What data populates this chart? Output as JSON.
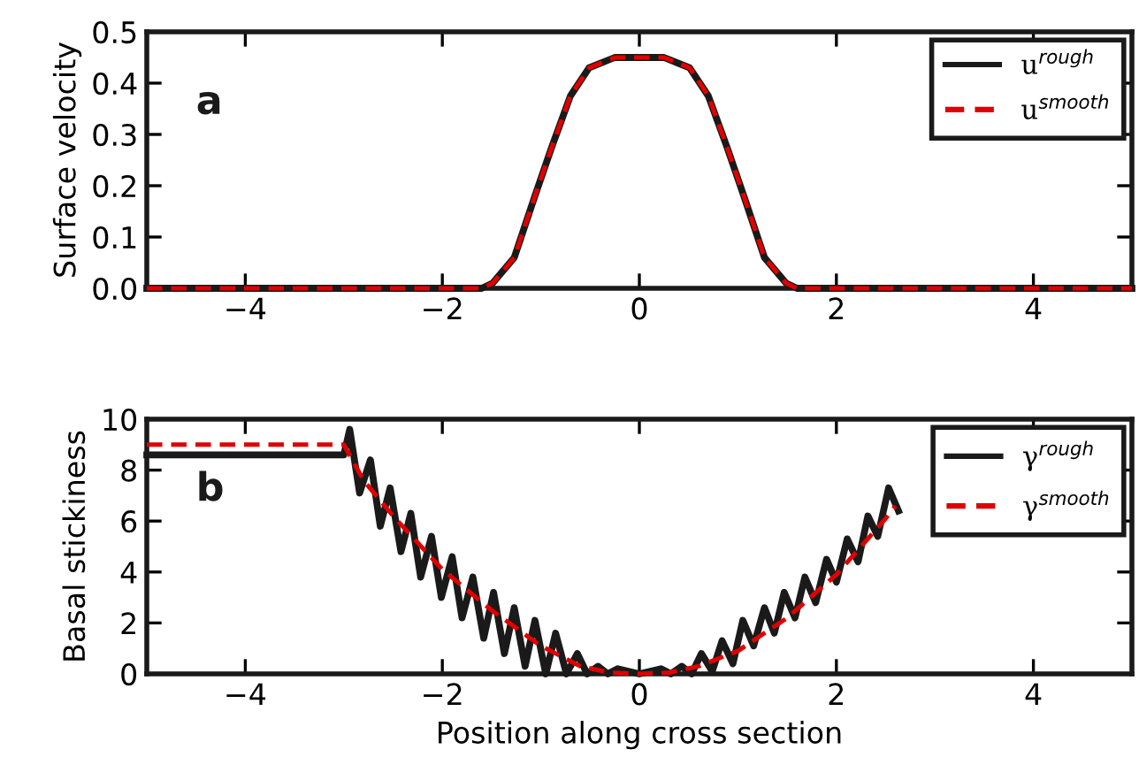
{
  "chart_data": [
    {
      "type": "line",
      "ylabel": "Surface velocity",
      "annotations": [
        "a"
      ],
      "xlim": [
        -5,
        5
      ],
      "xticks": [
        -4,
        -2,
        0,
        2,
        4
      ],
      "ylim": [
        0,
        0.5
      ],
      "yticks": [
        {
          "value": 0,
          "label": "0.0"
        },
        0.1,
        0.2,
        0.3,
        0.4,
        0.5
      ],
      "grid": false,
      "legend": "top right",
      "marker": "none",
      "series": [
        {
          "name": "u$^{rough}$",
          "color": "#1a1a1a",
          "line_style": "solid",
          "x": [
            -5,
            -1.6,
            -1.49,
            -1.27,
            -1.06,
            -0.89,
            -0.7,
            -0.51,
            -0.25,
            0,
            0.25,
            0.51,
            0.7,
            0.89,
            1.06,
            1.27,
            1.49,
            1.6,
            5
          ],
          "values": [
            0,
            0,
            0.01,
            0.06,
            0.18,
            0.275,
            0.375,
            0.43,
            0.45,
            0.45,
            0.45,
            0.43,
            0.375,
            0.275,
            0.18,
            0.06,
            0.01,
            0,
            0
          ]
        },
        {
          "name": "u$^{smooth}$",
          "color": "#e00000",
          "line_style": "dashed",
          "x": [
            -5,
            -1.6,
            -1.49,
            -1.27,
            -1.06,
            -0.89,
            -0.7,
            -0.51,
            -0.25,
            0,
            0.25,
            0.51,
            0.7,
            0.89,
            1.06,
            1.27,
            1.49,
            1.6,
            5
          ],
          "values": [
            0,
            0,
            0.01,
            0.06,
            0.18,
            0.275,
            0.375,
            0.43,
            0.45,
            0.45,
            0.45,
            0.43,
            0.375,
            0.275,
            0.18,
            0.06,
            0.01,
            0,
            0
          ]
        }
      ]
    },
    {
      "type": "line",
      "xlabel": "Position along cross section",
      "ylabel": "Basal stickiness",
      "annotations": [
        "b"
      ],
      "xlim": [
        -5,
        5
      ],
      "xticks": [
        -4,
        -2,
        0,
        2,
        4
      ],
      "ylim": [
        0,
        10
      ],
      "yticks": [
        0,
        2,
        4,
        6,
        8,
        10
      ],
      "grid": false,
      "legend": "top right",
      "marker": "none",
      "series": [
        {
          "name": "γ$^{rough}$",
          "color": "#1a1a1a",
          "line_style": "solid",
          "x": [
            -5,
            -3.0,
            -2.94,
            -2.84,
            -2.73,
            -2.63,
            -2.53,
            -2.42,
            -2.32,
            -2.22,
            -2.11,
            -2.01,
            -1.9,
            -1.8,
            -1.69,
            -1.58,
            -1.48,
            -1.37,
            -1.27,
            -1.16,
            -1.06,
            -0.95,
            -0.85,
            -0.74,
            -0.63,
            -0.53,
            -0.42,
            -0.32,
            -0.22,
            0,
            0.22,
            0.32,
            0.43,
            0.53,
            0.63,
            0.74,
            0.84,
            0.95,
            1.05,
            1.16,
            1.27,
            1.37,
            1.47,
            1.58,
            1.68,
            1.79,
            1.9,
            2.0,
            2.11,
            2.22,
            2.32,
            2.42,
            2.53,
            2.63
          ],
          "values": [
            8.6,
            8.6,
            9.6,
            7.1,
            8.4,
            5.8,
            7.3,
            4.8,
            6.3,
            3.8,
            5.4,
            3.0,
            4.6,
            2.2,
            3.8,
            1.4,
            3.2,
            0.8,
            2.6,
            0.3,
            2.1,
            0,
            1.6,
            0,
            0.8,
            0,
            0.3,
            0,
            0.2,
            0,
            0.2,
            0,
            0.3,
            0,
            0.8,
            0.1,
            1.3,
            0.4,
            2.1,
            1.1,
            2.6,
            1.6,
            3.2,
            2.2,
            3.8,
            2.8,
            4.5,
            3.6,
            5.3,
            4.4,
            6.2,
            5.4,
            7.3,
            6.4
          ]
        },
        {
          "name": "γ$^{smooth}$",
          "color": "#e00000",
          "line_style": "dashed",
          "x": [
            -5,
            -3,
            -2.8,
            -2.5,
            -2,
            -1.5,
            -1,
            -0.6,
            -0.3,
            0,
            0.3,
            0.6,
            1,
            1.5,
            2,
            2.5,
            2.6
          ],
          "values": [
            9,
            9,
            7.6,
            6.2,
            4.1,
            2.5,
            1.1,
            0.3,
            0.05,
            0,
            0.05,
            0.3,
            0.9,
            2.2,
            3.9,
            6.1,
            6.6
          ]
        }
      ]
    }
  ]
}
